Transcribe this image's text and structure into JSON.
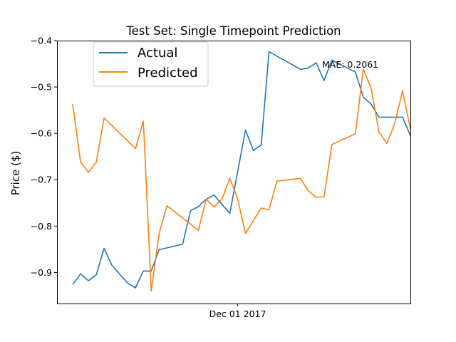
{
  "chart_data": {
    "type": "line",
    "title": "Test Set: Single Timepoint Prediction",
    "xlabel": "",
    "ylabel": "Price ($)",
    "ylim": [
      -0.967,
      -0.4
    ],
    "yticks": [
      -0.4,
      -0.5,
      -0.6,
      -0.7,
      -0.8,
      -0.9
    ],
    "ytick_labels": [
      "−0.4",
      "−0.5",
      "−0.6",
      "−0.7",
      "−0.8",
      "−0.9"
    ],
    "xlim": [
      "2017-11-08",
      "2017-12-23"
    ],
    "xticks": [
      "2017-12-01"
    ],
    "xtick_labels": [
      "Dec 01 2017"
    ],
    "annotation": "MAE: 0.2061",
    "legend_position": "top-left",
    "grid": false,
    "series": [
      {
        "name": "Actual",
        "color": "#1f77b4",
        "x": [
          "2017-11-10",
          "2017-11-11",
          "2017-11-12",
          "2017-11-13",
          "2017-11-14",
          "2017-11-15",
          "2017-11-17",
          "2017-11-18",
          "2017-11-19",
          "2017-11-20",
          "2017-11-21",
          "2017-11-24",
          "2017-11-25",
          "2017-11-26",
          "2017-11-27",
          "2017-11-28",
          "2017-11-30",
          "2017-12-02",
          "2017-12-03",
          "2017-12-04",
          "2017-12-05",
          "2017-12-09",
          "2017-12-10",
          "2017-12-11",
          "2017-12-12",
          "2017-12-13",
          "2017-12-16",
          "2017-12-17",
          "2017-12-18",
          "2017-12-19",
          "2017-12-20",
          "2017-12-22",
          "2017-12-23"
        ],
        "values": [
          -0.926,
          -0.903,
          -0.918,
          -0.905,
          -0.848,
          -0.885,
          -0.923,
          -0.933,
          -0.897,
          -0.897,
          -0.851,
          -0.839,
          -0.767,
          -0.758,
          -0.742,
          -0.733,
          -0.773,
          -0.593,
          -0.637,
          -0.625,
          -0.424,
          -0.462,
          -0.459,
          -0.448,
          -0.486,
          -0.442,
          -0.468,
          -0.522,
          -0.537,
          -0.565,
          -0.565,
          -0.565,
          -0.605
        ],
        "values_note": "",
        "dates": []
      },
      {
        "name": "Predicted",
        "color": "#ff7f0e",
        "x": [
          "2017-11-10",
          "2017-11-11",
          "2017-11-12",
          "2017-11-13",
          "2017-11-14",
          "2017-11-18",
          "2017-11-19",
          "2017-11-20",
          "2017-11-21",
          "2017-11-22",
          "2017-11-26",
          "2017-11-27",
          "2017-11-28",
          "2017-11-29",
          "2017-11-30",
          "2017-12-01",
          "2017-12-02",
          "2017-12-04",
          "2017-12-05",
          "2017-12-06",
          "2017-12-09",
          "2017-12-10",
          "2017-12-11",
          "2017-12-12",
          "2017-12-13",
          "2017-12-16",
          "2017-12-17",
          "2017-12-18",
          "2017-12-19",
          "2017-12-20",
          "2017-12-21",
          "2017-12-22",
          "2017-12-23"
        ],
        "values": [
          -0.537,
          -0.662,
          -0.684,
          -0.662,
          -0.567,
          -0.633,
          -0.574,
          -0.94,
          -0.816,
          -0.756,
          -0.809,
          -0.742,
          -0.759,
          -0.742,
          -0.697,
          -0.741,
          -0.816,
          -0.761,
          -0.765,
          -0.703,
          -0.697,
          -0.724,
          -0.738,
          -0.737,
          -0.624,
          -0.601,
          -0.461,
          -0.503,
          -0.597,
          -0.622,
          -0.579,
          -0.508,
          -0.591
        ],
        "values_note": "",
        "dates": []
      }
    ]
  }
}
